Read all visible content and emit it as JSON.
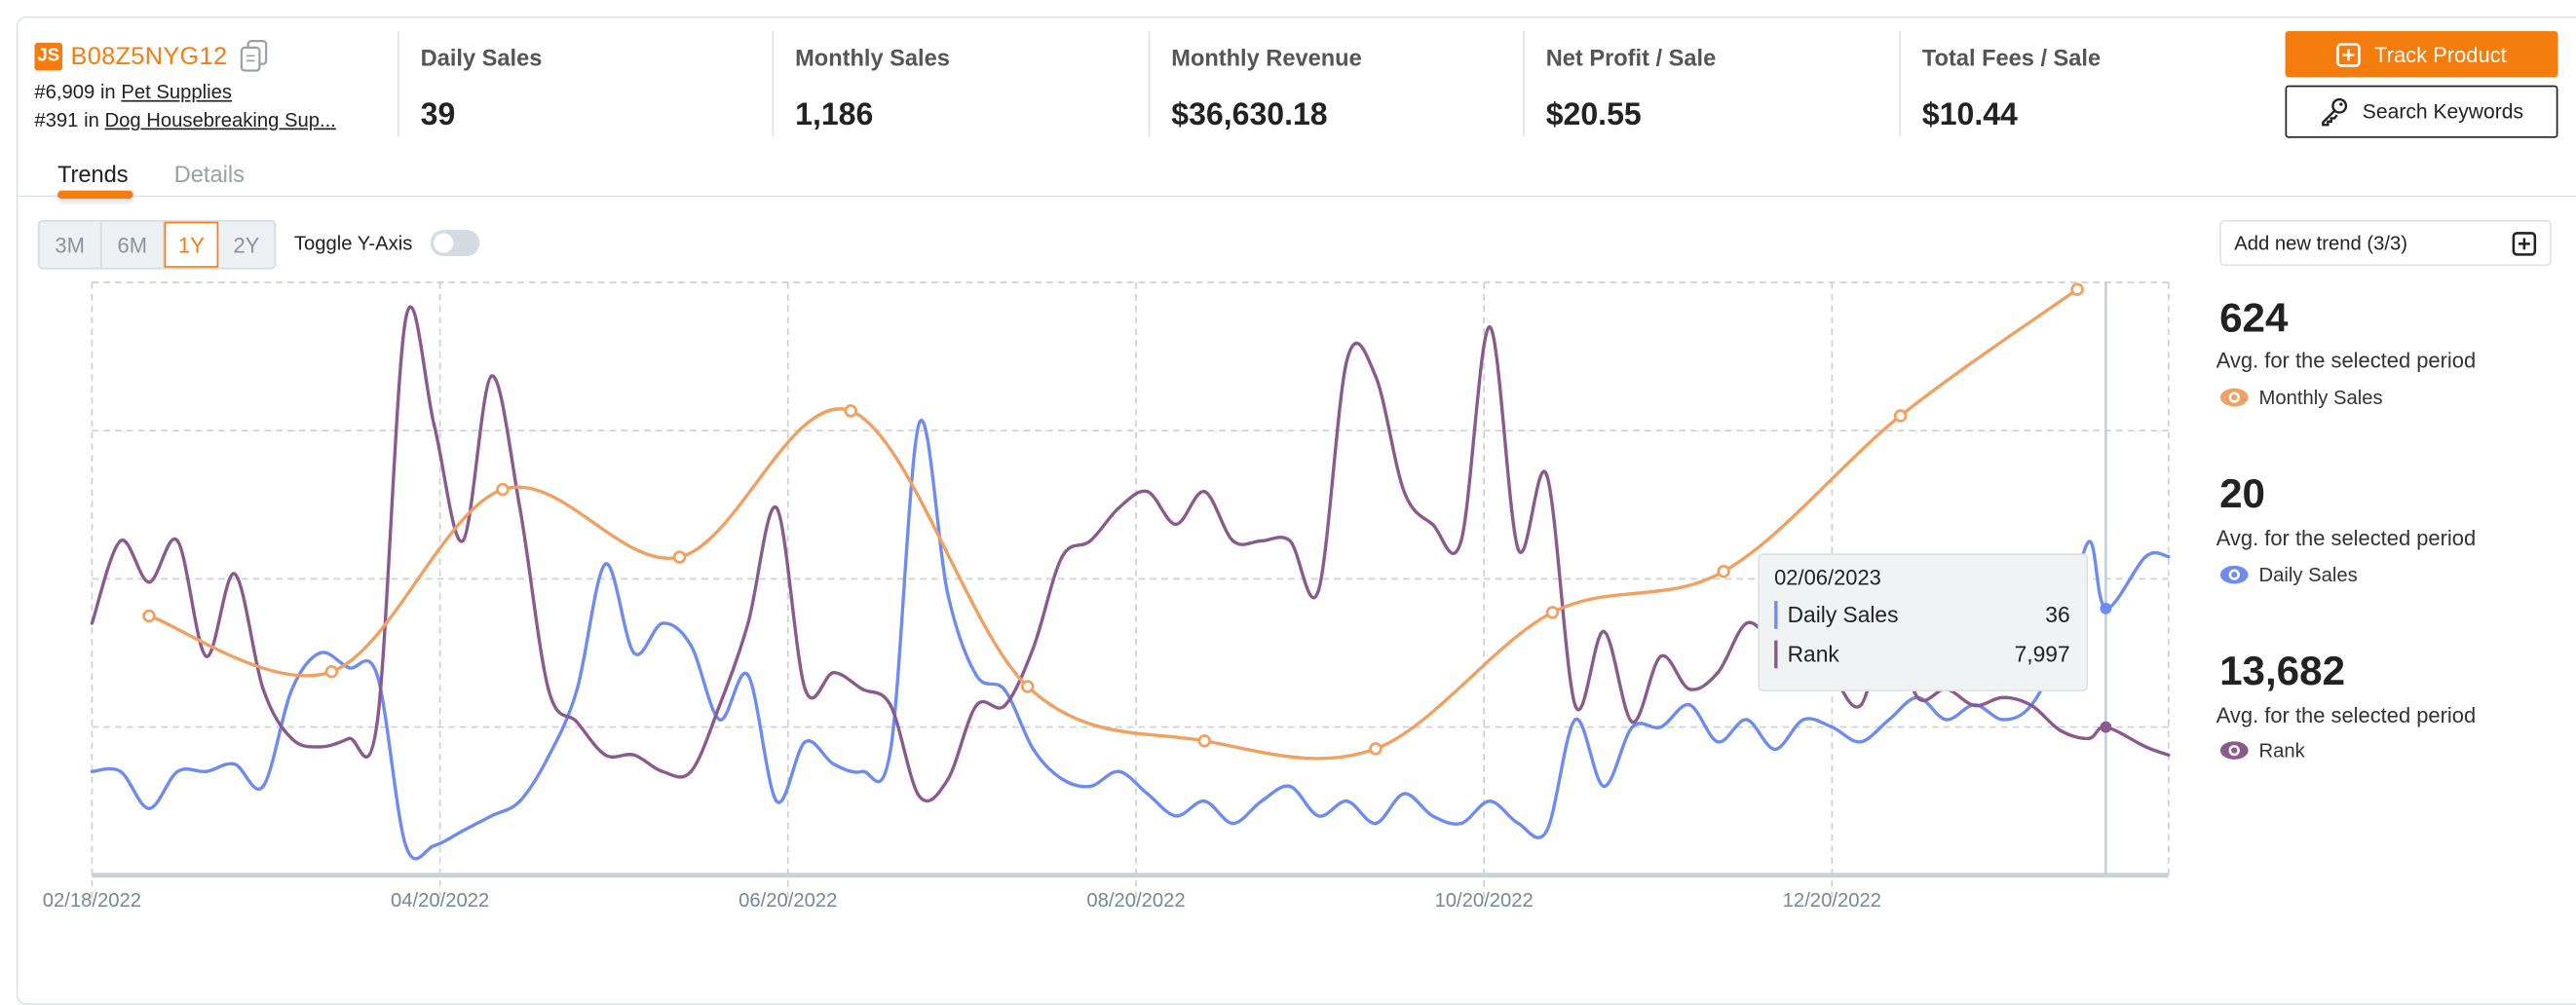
{
  "product": {
    "logo_text": "JS",
    "asin": "B08Z5NYG12",
    "ranks": [
      {
        "rank": "#6,909",
        "in": "in",
        "category": "Pet Supplies"
      },
      {
        "rank": "#391",
        "in": "in",
        "category": "Dog Housebreaking Sup..."
      }
    ]
  },
  "metrics": [
    {
      "label": "Daily Sales",
      "value": "39"
    },
    {
      "label": "Monthly Sales",
      "value": "1,186"
    },
    {
      "label": "Monthly Revenue",
      "value": "$36,630.18"
    },
    {
      "label": "Net Profit / Sale",
      "value": "$20.55"
    },
    {
      "label": "Total Fees / Sale",
      "value": "$10.44"
    }
  ],
  "actions": {
    "track": "Track Product",
    "keywords": "Search Keywords"
  },
  "tabs": [
    {
      "label": "Trends",
      "active": true
    },
    {
      "label": "Details",
      "active": false
    }
  ],
  "range_options": [
    "3M",
    "6M",
    "1Y",
    "2Y"
  ],
  "range_selected": "1Y",
  "toggle_y_axis": {
    "label": "Toggle Y-Axis",
    "on": false
  },
  "add_trend": "Add new trend (3/3)",
  "stats": [
    {
      "value": "624",
      "sub": "Avg. for the selected period",
      "name": "Monthly Sales",
      "color": "#F0A060"
    },
    {
      "value": "20",
      "sub": "Avg. for the selected period",
      "name": "Daily Sales",
      "color": "#6E8BF0"
    },
    {
      "value": "13,682",
      "sub": "Avg. for the selected period",
      "name": "Rank",
      "color": "#8A5A8C"
    }
  ],
  "tooltip": {
    "date": "02/06/2023",
    "rows": [
      {
        "label": "Daily Sales",
        "value": "36",
        "color": "#6E8BF0"
      },
      {
        "label": "Rank",
        "value": "7,997",
        "color": "#8A5A8C"
      }
    ]
  },
  "chart_data": {
    "type": "line",
    "x_range": [
      "02/18/2022",
      "02/17/2023"
    ],
    "x_ticks": [
      "02/18/2022",
      "04/20/2022",
      "06/20/2022",
      "08/20/2022",
      "10/20/2022",
      "12/20/2022"
    ],
    "grid": true,
    "hover_date": "02/06/2023",
    "series": [
      {
        "name": "Monthly Sales",
        "color": "#F0A060",
        "ylim": [
          0,
          1200
        ],
        "markers": true,
        "x": [
          "02/28/2022",
          "04/01/2022",
          "05/01/2022",
          "06/01/2022",
          "07/01/2022",
          "08/01/2022",
          "09/01/2022",
          "10/01/2022",
          "11/01/2022",
          "12/01/2022",
          "01/01/2023",
          "02/01/2023"
        ],
        "values": [
          525,
          412,
          781,
          644,
          940,
          382,
          272,
          256,
          532,
          615,
          930,
          1186
        ]
      },
      {
        "name": "Daily Sales",
        "color": "#6E8BF0",
        "ylim": [
          0,
          80
        ],
        "x": [
          "02/18/2022",
          "02/23/2022",
          "02/28/2022",
          "03/05/2022",
          "03/10/2022",
          "03/15/2022",
          "03/20/2022",
          "03/25/2022",
          "03/30/2022",
          "04/04/2022",
          "04/09/2022",
          "04/14/2022",
          "04/19/2022",
          "04/24/2022",
          "04/29/2022",
          "05/04/2022",
          "05/09/2022",
          "05/14/2022",
          "05/19/2022",
          "05/24/2022",
          "05/29/2022",
          "06/03/2022",
          "06/08/2022",
          "06/13/2022",
          "06/18/2022",
          "06/23/2022",
          "06/28/2022",
          "07/03/2022",
          "07/08/2022",
          "07/13/2022",
          "07/18/2022",
          "07/23/2022",
          "07/28/2022",
          "08/02/2022",
          "08/07/2022",
          "08/12/2022",
          "08/17/2022",
          "08/22/2022",
          "08/27/2022",
          "09/01/2022",
          "09/06/2022",
          "09/11/2022",
          "09/16/2022",
          "09/21/2022",
          "09/26/2022",
          "10/01/2022",
          "10/06/2022",
          "10/11/2022",
          "10/16/2022",
          "10/21/2022",
          "10/26/2022",
          "10/31/2022",
          "11/05/2022",
          "11/10/2022",
          "11/15/2022",
          "11/20/2022",
          "11/25/2022",
          "11/30/2022",
          "12/05/2022",
          "12/10/2022",
          "12/15/2022",
          "12/20/2022",
          "12/25/2022",
          "12/30/2022",
          "01/04/2023",
          "01/09/2023",
          "01/14/2023",
          "01/19/2023",
          "01/24/2023",
          "01/29/2023",
          "02/03/2023",
          "02/06/2023",
          "02/13/2023",
          "02/17/2023"
        ],
        "values": [
          14,
          14,
          9,
          14,
          14,
          15,
          12,
          25,
          30,
          28,
          27,
          4,
          4,
          6,
          8,
          10,
          16,
          25,
          42,
          30,
          34,
          31,
          21,
          27,
          10,
          18,
          15,
          14,
          17,
          61,
          38,
          27,
          25,
          17,
          13,
          12,
          14,
          11,
          8,
          10,
          7,
          10,
          12,
          8,
          10,
          7,
          11,
          8,
          7,
          10,
          7,
          6,
          21,
          12,
          20,
          20,
          23,
          18,
          21,
          17,
          21,
          20,
          18,
          21,
          24,
          21,
          23,
          21,
          23,
          31,
          45,
          36,
          43,
          43
        ]
      },
      {
        "name": "Rank",
        "color": "#8A5A8C",
        "ylim": [
          0,
          32000
        ],
        "x": [
          "02/18/2022",
          "02/23/2022",
          "02/28/2022",
          "03/05/2022",
          "03/10/2022",
          "03/15/2022",
          "03/20/2022",
          "03/25/2022",
          "03/30/2022",
          "04/04/2022",
          "04/09/2022",
          "04/14/2022",
          "04/19/2022",
          "04/24/2022",
          "04/29/2022",
          "05/04/2022",
          "05/09/2022",
          "05/14/2022",
          "05/19/2022",
          "05/24/2022",
          "05/29/2022",
          "06/03/2022",
          "06/08/2022",
          "06/13/2022",
          "06/18/2022",
          "06/23/2022",
          "06/28/2022",
          "07/03/2022",
          "07/08/2022",
          "07/13/2022",
          "07/18/2022",
          "07/23/2022",
          "07/28/2022",
          "08/02/2022",
          "08/07/2022",
          "08/12/2022",
          "08/17/2022",
          "08/22/2022",
          "08/27/2022",
          "09/01/2022",
          "09/06/2022",
          "09/11/2022",
          "09/16/2022",
          "09/21/2022",
          "09/26/2022",
          "10/01/2022",
          "10/06/2022",
          "10/11/2022",
          "10/16/2022",
          "10/21/2022",
          "10/26/2022",
          "10/31/2022",
          "11/05/2022",
          "11/10/2022",
          "11/15/2022",
          "11/20/2022",
          "11/25/2022",
          "11/30/2022",
          "12/05/2022",
          "12/10/2022",
          "12/15/2022",
          "12/20/2022",
          "12/25/2022",
          "12/30/2022",
          "01/04/2023",
          "01/09/2023",
          "01/14/2023",
          "01/19/2023",
          "01/24/2023",
          "01/29/2023",
          "02/03/2023",
          "02/06/2023",
          "02/13/2023",
          "02/17/2023"
        ],
        "values": [
          13600,
          18050,
          15820,
          18050,
          11820,
          16270,
          10050,
          7380,
          6930,
          7380,
          8270,
          30050,
          24270,
          18050,
          26940,
          19830,
          10050,
          8270,
          6490,
          6490,
          5600,
          5600,
          9160,
          13600,
          19830,
          10050,
          10940,
          10050,
          9160,
          4270,
          5160,
          9160,
          9160,
          12270,
          17160,
          18050,
          19830,
          20710,
          18940,
          20710,
          18050,
          18050,
          18050,
          15380,
          27830,
          26940,
          20710,
          18940,
          18050,
          29600,
          17600,
          21600,
          9160,
          13160,
          8270,
          11820,
          10050,
          10940,
          13600,
          12710,
          13600,
          10940,
          9160,
          13600,
          9600,
          10050,
          9160,
          9600,
          9160,
          7820,
          7380,
          7997,
          6930,
          6490
        ]
      }
    ]
  }
}
